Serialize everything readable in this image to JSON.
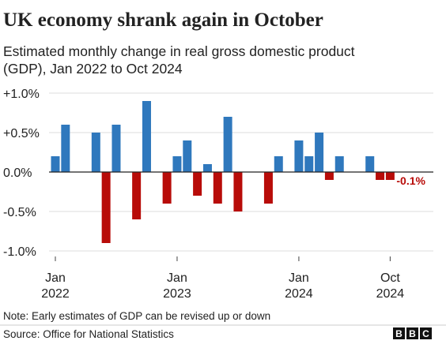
{
  "chart_data": {
    "type": "bar",
    "title": "UK economy shrank again in October",
    "subtitle": [
      "Estimated monthly change in real gross domestic product",
      "(GDP), Jan 2022 to Oct 2024"
    ],
    "categories": [
      [
        "Jan",
        "2022"
      ],
      null,
      null,
      null,
      null,
      null,
      null,
      null,
      null,
      null,
      null,
      null,
      [
        "Jan",
        "2023"
      ],
      null,
      null,
      null,
      null,
      null,
      null,
      null,
      null,
      null,
      null,
      null,
      [
        "Jan",
        "2024"
      ],
      null,
      null,
      null,
      null,
      null,
      null,
      null,
      null,
      [
        "Oct",
        "2024"
      ]
    ],
    "values": [
      0.2,
      0.6,
      0,
      0,
      0.5,
      -0.9,
      0.6,
      0,
      -0.6,
      0.9,
      0,
      -0.4,
      0.2,
      0.4,
      -0.3,
      0.1,
      -0.4,
      0.7,
      -0.5,
      0,
      0,
      -0.4,
      0.2,
      0,
      0.4,
      0.2,
      0.5,
      -0.1,
      0.2,
      0,
      0,
      0.2,
      -0.1,
      -0.1
    ],
    "value_labels": [
      null,
      null,
      null,
      null,
      null,
      null,
      null,
      null,
      null,
      null,
      null,
      null,
      null,
      null,
      null,
      null,
      null,
      null,
      null,
      null,
      null,
      null,
      null,
      null,
      null,
      null,
      null,
      null,
      null,
      null,
      null,
      null,
      null,
      "-0.1%"
    ],
    "color_positive": "#2f78bd",
    "color_negative": "#b80c09",
    "ylim": [
      -1.0,
      1.0
    ],
    "yticks": [
      {
        "value": -1.0,
        "label": "-1.0%"
      },
      {
        "value": -0.5,
        "label": "-0.5%"
      },
      {
        "value": 0,
        "label": "0.0%"
      },
      {
        "value": 0.5,
        "label": "+0.5%"
      },
      {
        "value": 1.0,
        "label": "+1.0%"
      }
    ],
    "grid": true,
    "note": "Note: Early estimates of GDP can be revised up or down",
    "source": "Source: Office for National Statistics",
    "logo": [
      "B",
      "B",
      "C"
    ]
  }
}
